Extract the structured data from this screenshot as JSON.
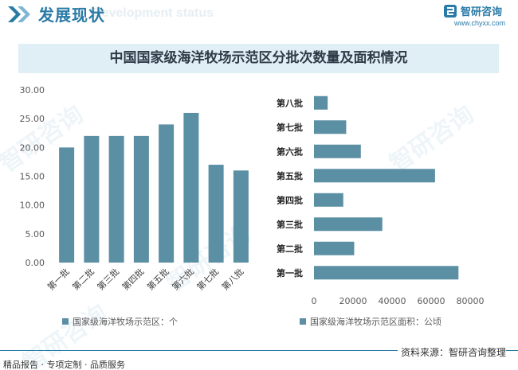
{
  "header": {
    "title": "发展现状",
    "ghost_text": "Development status",
    "brand_name": "智研咨询",
    "brand_url": "www.chyxx.com"
  },
  "chart_title": "中国国家级海洋牧场示范区分批次数量及面积情况",
  "watermark": "智研咨询",
  "colors": {
    "accent": "#2a7aa6",
    "bar": "#5b8fa4",
    "band": "#e0eef6"
  },
  "chart_data": [
    {
      "type": "bar",
      "categories": [
        "第一批",
        "第二批",
        "第三批",
        "第四批",
        "第五批",
        "第六批",
        "第七批",
        "第八批"
      ],
      "series": [
        {
          "name": "国家级海洋牧场示范区：个",
          "values": [
            20,
            22,
            22,
            22,
            24,
            26,
            17,
            16
          ]
        }
      ],
      "ylim": [
        0,
        30
      ],
      "yticks": [
        "0.00",
        "5.00",
        "10.00",
        "15.00",
        "20.00",
        "25.00",
        "30.00"
      ],
      "legend": "bottom"
    },
    {
      "type": "bar",
      "orientation": "horizontal",
      "categories": [
        "第一批",
        "第二批",
        "第三批",
        "第四批",
        "第五批",
        "第六批",
        "第七批",
        "第八批"
      ],
      "series": [
        {
          "name": "国家级海洋牧场示范区面积：公顷",
          "values": [
            74000,
            20600,
            35000,
            15000,
            62000,
            24000,
            16500,
            7000
          ]
        }
      ],
      "xlim": [
        0,
        80000
      ],
      "xticks": [
        "0",
        "20000",
        "40000",
        "60000",
        "80000"
      ],
      "legend": "bottom"
    }
  ],
  "footer": {
    "left": "精品报告 · 专项定制 · 品质服务",
    "source": "资料来源：智研咨询整理"
  }
}
